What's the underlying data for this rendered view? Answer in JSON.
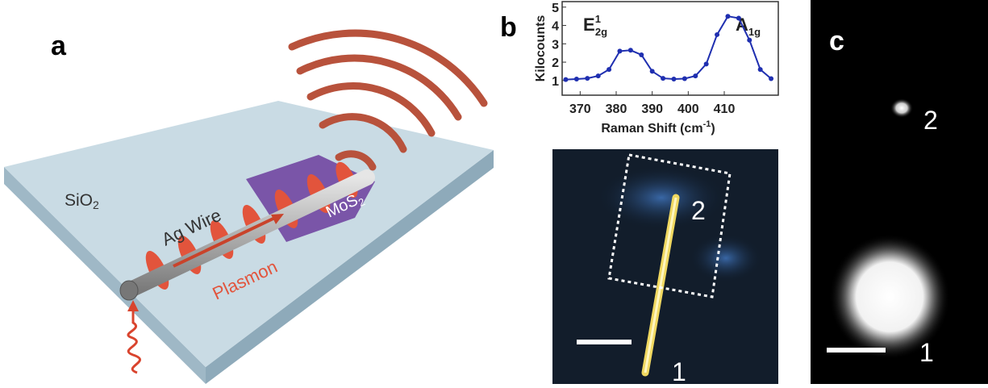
{
  "panels": {
    "a": "a",
    "b": "b",
    "c": "c"
  },
  "schematic": {
    "substrate": {
      "main": "SiO",
      "sub": "2"
    },
    "wire": "Ag Wire",
    "plasmon": "Plasmon",
    "flake": {
      "main": "MoS",
      "sub": "2"
    }
  },
  "chart_data": {
    "type": "line",
    "ylabel": "Kilocounts",
    "xlabel": {
      "text": "Raman Shift (cm",
      "sup": "-1",
      "end": ")"
    },
    "annotations": [
      {
        "text": "E",
        "sup": "1",
        "sub": "2g"
      },
      {
        "text": "A",
        "sub": "1g"
      }
    ],
    "x": [
      366,
      369,
      372,
      375,
      378,
      381,
      384,
      387,
      390,
      393,
      396,
      399,
      402,
      405,
      408,
      411,
      414,
      417,
      420,
      423
    ],
    "series": [
      {
        "color": "#1f2fb0",
        "values": [
          1.05,
          1.08,
          1.12,
          1.25,
          1.6,
          2.6,
          2.65,
          2.4,
          1.5,
          1.12,
          1.08,
          1.1,
          1.25,
          1.9,
          3.5,
          4.5,
          4.4,
          3.2,
          1.6,
          1.1
        ]
      }
    ],
    "xlim": [
      365,
      425
    ],
    "ylim": [
      0.2,
      5.3
    ],
    "xticks": [
      370,
      380,
      390,
      400,
      410
    ],
    "yticks": [
      1,
      2,
      3,
      4,
      5
    ]
  },
  "micrograph": {
    "end_top": "2",
    "end_bottom": "1"
  },
  "emission": {
    "spot_top": "2",
    "spot_bottom": "1"
  }
}
